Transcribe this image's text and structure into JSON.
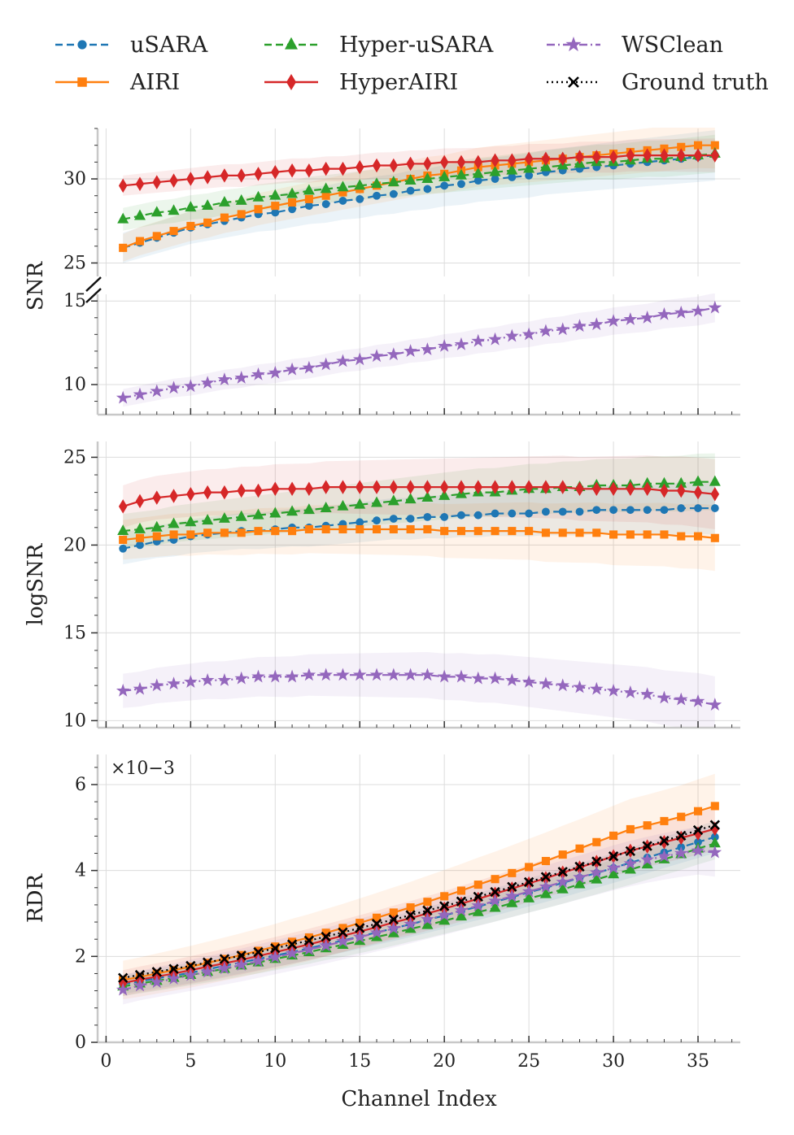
{
  "chart_data": {
    "type": "line",
    "xlabel": "Channel Index",
    "x": [
      1,
      2,
      3,
      4,
      5,
      6,
      7,
      8,
      9,
      10,
      11,
      12,
      13,
      14,
      15,
      16,
      17,
      18,
      19,
      20,
      21,
      22,
      23,
      24,
      25,
      26,
      27,
      28,
      29,
      30,
      31,
      32,
      33,
      34,
      35,
      36
    ],
    "xticks": [
      0,
      5,
      10,
      15,
      20,
      25,
      30,
      35
    ],
    "xlim": [
      -0.5,
      37.5
    ],
    "legend_position": "top",
    "series_styles": [
      {
        "name": "uSARA",
        "color": "#1f77b4",
        "marker": "dot",
        "dash": "dashed"
      },
      {
        "name": "Hyper-uSARA",
        "color": "#2ca02c",
        "marker": "triangle",
        "dash": "dashed"
      },
      {
        "name": "WSClean",
        "color": "#9467bd",
        "marker": "star",
        "dash": "dashdot"
      },
      {
        "name": "AIRI",
        "color": "#ff7f0e",
        "marker": "square",
        "dash": "solid"
      },
      {
        "name": "HyperAIRI",
        "color": "#d62728",
        "marker": "diamond",
        "dash": "solid"
      },
      {
        "name": "Ground truth",
        "color": "#000000",
        "marker": "x",
        "dash": "dotted"
      }
    ],
    "panels": [
      {
        "ylabel": "SNR",
        "broken_axis": true,
        "upper": {
          "ylim": [
            24.2,
            33
          ],
          "yticks": [
            25,
            30
          ]
        },
        "lower": {
          "ylim": [
            8.2,
            15.4
          ],
          "yticks": [
            10,
            15
          ]
        },
        "series": [
          {
            "name": "uSARA",
            "values": [
              25.9,
              26.2,
              26.5,
              26.8,
              27.1,
              27.3,
              27.5,
              27.7,
              27.9,
              28.0,
              28.2,
              28.4,
              28.5,
              28.7,
              28.8,
              29.0,
              29.1,
              29.3,
              29.4,
              29.6,
              29.7,
              29.9,
              30.0,
              30.1,
              30.2,
              30.4,
              30.5,
              30.6,
              30.7,
              30.8,
              30.9,
              31.0,
              31.1,
              31.2,
              31.3,
              31.4
            ],
            "spread": 1.2
          },
          {
            "name": "AIRI",
            "values": [
              25.9,
              26.3,
              26.6,
              26.9,
              27.2,
              27.4,
              27.7,
              27.9,
              28.2,
              28.4,
              28.6,
              28.8,
              29.0,
              29.2,
              29.4,
              29.6,
              29.8,
              30.0,
              30.2,
              30.3,
              30.5,
              30.7,
              30.8,
              30.9,
              31.0,
              31.1,
              31.2,
              31.3,
              31.4,
              31.5,
              31.6,
              31.7,
              31.8,
              31.9,
              32.0,
              32.0
            ],
            "spread": 1.1
          },
          {
            "name": "Hyper-uSARA",
            "values": [
              27.6,
              27.8,
              28.0,
              28.1,
              28.3,
              28.4,
              28.6,
              28.7,
              28.9,
              29.0,
              29.1,
              29.3,
              29.4,
              29.5,
              29.6,
              29.7,
              29.8,
              29.9,
              30.0,
              30.1,
              30.2,
              30.3,
              30.4,
              30.5,
              30.6,
              30.7,
              30.8,
              30.9,
              31.0,
              31.0,
              31.1,
              31.2,
              31.2,
              31.3,
              31.4,
              31.5
            ],
            "spread": 0.9
          },
          {
            "name": "HyperAIRI",
            "values": [
              29.6,
              29.7,
              29.8,
              29.9,
              30.0,
              30.1,
              30.2,
              30.2,
              30.3,
              30.4,
              30.5,
              30.5,
              30.6,
              30.6,
              30.7,
              30.8,
              30.8,
              30.9,
              30.9,
              31.0,
              31.0,
              31.0,
              31.1,
              31.1,
              31.2,
              31.2,
              31.2,
              31.3,
              31.3,
              31.3,
              31.4,
              31.4,
              31.4,
              31.4,
              31.4,
              31.4
            ],
            "spread": 0.8
          },
          {
            "name": "WSClean",
            "values": [
              9.2,
              9.4,
              9.6,
              9.8,
              9.9,
              10.1,
              10.3,
              10.4,
              10.6,
              10.7,
              10.9,
              11.0,
              11.2,
              11.4,
              11.5,
              11.7,
              11.8,
              12.0,
              12.1,
              12.3,
              12.4,
              12.6,
              12.7,
              12.9,
              13.0,
              13.2,
              13.3,
              13.5,
              13.6,
              13.8,
              13.9,
              14.0,
              14.2,
              14.3,
              14.4,
              14.6
            ],
            "spread": 0.7
          }
        ]
      },
      {
        "ylabel": "logSNR",
        "ylim": [
          9.6,
          25.9
        ],
        "yticks": [
          10,
          15,
          20,
          25
        ],
        "series": [
          {
            "name": "uSARA",
            "values": [
              19.8,
              20.0,
              20.2,
              20.3,
              20.5,
              20.6,
              20.7,
              20.8,
              20.8,
              20.9,
              21.0,
              21.0,
              21.1,
              21.2,
              21.3,
              21.4,
              21.5,
              21.5,
              21.6,
              21.6,
              21.7,
              21.7,
              21.8,
              21.8,
              21.8,
              21.9,
              21.9,
              21.9,
              22.0,
              22.0,
              22.0,
              22.0,
              22.0,
              22.1,
              22.1,
              22.1
            ],
            "spread": 1.2
          },
          {
            "name": "AIRI",
            "values": [
              20.3,
              20.4,
              20.5,
              20.6,
              20.6,
              20.7,
              20.7,
              20.7,
              20.8,
              20.8,
              20.8,
              20.9,
              20.9,
              20.9,
              20.9,
              20.9,
              20.9,
              20.9,
              20.9,
              20.8,
              20.8,
              20.8,
              20.8,
              20.8,
              20.8,
              20.7,
              20.7,
              20.7,
              20.7,
              20.6,
              20.6,
              20.6,
              20.6,
              20.5,
              20.5,
              20.4
            ],
            "spread": 1.5
          },
          {
            "name": "Hyper-uSARA",
            "values": [
              20.8,
              20.9,
              21.0,
              21.2,
              21.3,
              21.4,
              21.5,
              21.6,
              21.7,
              21.8,
              21.9,
              22.0,
              22.1,
              22.2,
              22.3,
              22.4,
              22.5,
              22.6,
              22.7,
              22.8,
              22.9,
              23.0,
              23.0,
              23.1,
              23.2,
              23.2,
              23.3,
              23.3,
              23.4,
              23.4,
              23.4,
              23.5,
              23.5,
              23.5,
              23.6,
              23.6
            ],
            "spread": 1.3
          },
          {
            "name": "HyperAIRI",
            "values": [
              22.2,
              22.5,
              22.7,
              22.8,
              22.9,
              23.0,
              23.0,
              23.1,
              23.1,
              23.2,
              23.2,
              23.2,
              23.3,
              23.3,
              23.3,
              23.3,
              23.3,
              23.3,
              23.3,
              23.3,
              23.3,
              23.3,
              23.3,
              23.3,
              23.3,
              23.3,
              23.3,
              23.2,
              23.2,
              23.2,
              23.2,
              23.2,
              23.1,
              23.1,
              23.0,
              22.9
            ],
            "spread": 1.6
          },
          {
            "name": "WSClean",
            "values": [
              11.7,
              11.8,
              12.0,
              12.1,
              12.2,
              12.3,
              12.3,
              12.4,
              12.5,
              12.5,
              12.5,
              12.6,
              12.6,
              12.6,
              12.6,
              12.6,
              12.6,
              12.6,
              12.6,
              12.5,
              12.5,
              12.4,
              12.4,
              12.3,
              12.2,
              12.1,
              12.0,
              11.9,
              11.8,
              11.7,
              11.6,
              11.5,
              11.3,
              11.2,
              11.1,
              10.9
            ],
            "spread": 1.3
          }
        ]
      },
      {
        "ylabel": "RDR",
        "scale_note": "×10−3",
        "ylim": [
          0,
          6.7
        ],
        "yticks": [
          0,
          2,
          4,
          6
        ],
        "series": [
          {
            "name": "uSARA",
            "values": [
              1.35,
              1.42,
              1.49,
              1.55,
              1.62,
              1.7,
              1.78,
              1.86,
              1.94,
              2.02,
              2.1,
              2.19,
              2.28,
              2.37,
              2.46,
              2.56,
              2.65,
              2.75,
              2.85,
              2.95,
              3.06,
              3.16,
              3.27,
              3.38,
              3.49,
              3.6,
              3.71,
              3.83,
              3.94,
              4.06,
              4.18,
              4.3,
              4.42,
              4.54,
              4.66,
              4.78
            ],
            "spread": 0.3
          },
          {
            "name": "AIRI",
            "values": [
              1.45,
              1.52,
              1.6,
              1.68,
              1.76,
              1.85,
              1.94,
              2.03,
              2.13,
              2.23,
              2.34,
              2.44,
              2.55,
              2.66,
              2.78,
              2.9,
              3.02,
              3.14,
              3.27,
              3.4,
              3.53,
              3.67,
              3.8,
              3.94,
              4.08,
              4.22,
              4.37,
              4.51,
              4.66,
              4.81,
              4.96,
              5.05,
              5.15,
              5.25,
              5.38,
              5.5
            ],
            "spread": 0.6
          },
          {
            "name": "Hyper-uSARA",
            "values": [
              1.3,
              1.37,
              1.43,
              1.5,
              1.57,
              1.64,
              1.71,
              1.79,
              1.86,
              1.94,
              2.02,
              2.1,
              2.19,
              2.27,
              2.36,
              2.45,
              2.54,
              2.64,
              2.73,
              2.83,
              2.93,
              3.03,
              3.13,
              3.24,
              3.35,
              3.45,
              3.56,
              3.68,
              3.79,
              3.91,
              4.02,
              4.14,
              4.26,
              4.38,
              4.51,
              4.63
            ],
            "spread": 0.3
          },
          {
            "name": "HyperAIRI",
            "values": [
              1.38,
              1.46,
              1.53,
              1.6,
              1.68,
              1.76,
              1.84,
              1.92,
              2.01,
              2.1,
              2.19,
              2.28,
              2.38,
              2.48,
              2.58,
              2.68,
              2.79,
              2.89,
              3.0,
              3.11,
              3.23,
              3.34,
              3.46,
              3.58,
              3.7,
              3.82,
              3.95,
              4.07,
              4.2,
              4.33,
              4.46,
              4.56,
              4.66,
              4.76,
              4.86,
              4.97
            ],
            "spread": 0.4
          },
          {
            "name": "WSClean",
            "values": [
              1.22,
              1.32,
              1.4,
              1.48,
              1.56,
              1.64,
              1.72,
              1.8,
              1.89,
              1.98,
              2.07,
              2.16,
              2.25,
              2.35,
              2.45,
              2.55,
              2.65,
              2.75,
              2.86,
              2.96,
              3.07,
              3.18,
              3.29,
              3.4,
              3.51,
              3.62,
              3.73,
              3.84,
              3.95,
              4.06,
              4.16,
              4.25,
              4.33,
              4.4,
              4.46,
              4.42
            ],
            "spread": 0.45
          },
          {
            "name": "Ground truth",
            "values": [
              1.5,
              1.57,
              1.64,
              1.71,
              1.78,
              1.86,
              1.94,
              2.02,
              2.1,
              2.19,
              2.28,
              2.37,
              2.46,
              2.56,
              2.66,
              2.76,
              2.86,
              2.96,
              3.07,
              3.17,
              3.28,
              3.39,
              3.5,
              3.62,
              3.73,
              3.85,
              3.97,
              4.09,
              4.21,
              4.33,
              4.45,
              4.57,
              4.69,
              4.81,
              4.94,
              5.06
            ],
            "spread": 0
          }
        ]
      }
    ]
  }
}
